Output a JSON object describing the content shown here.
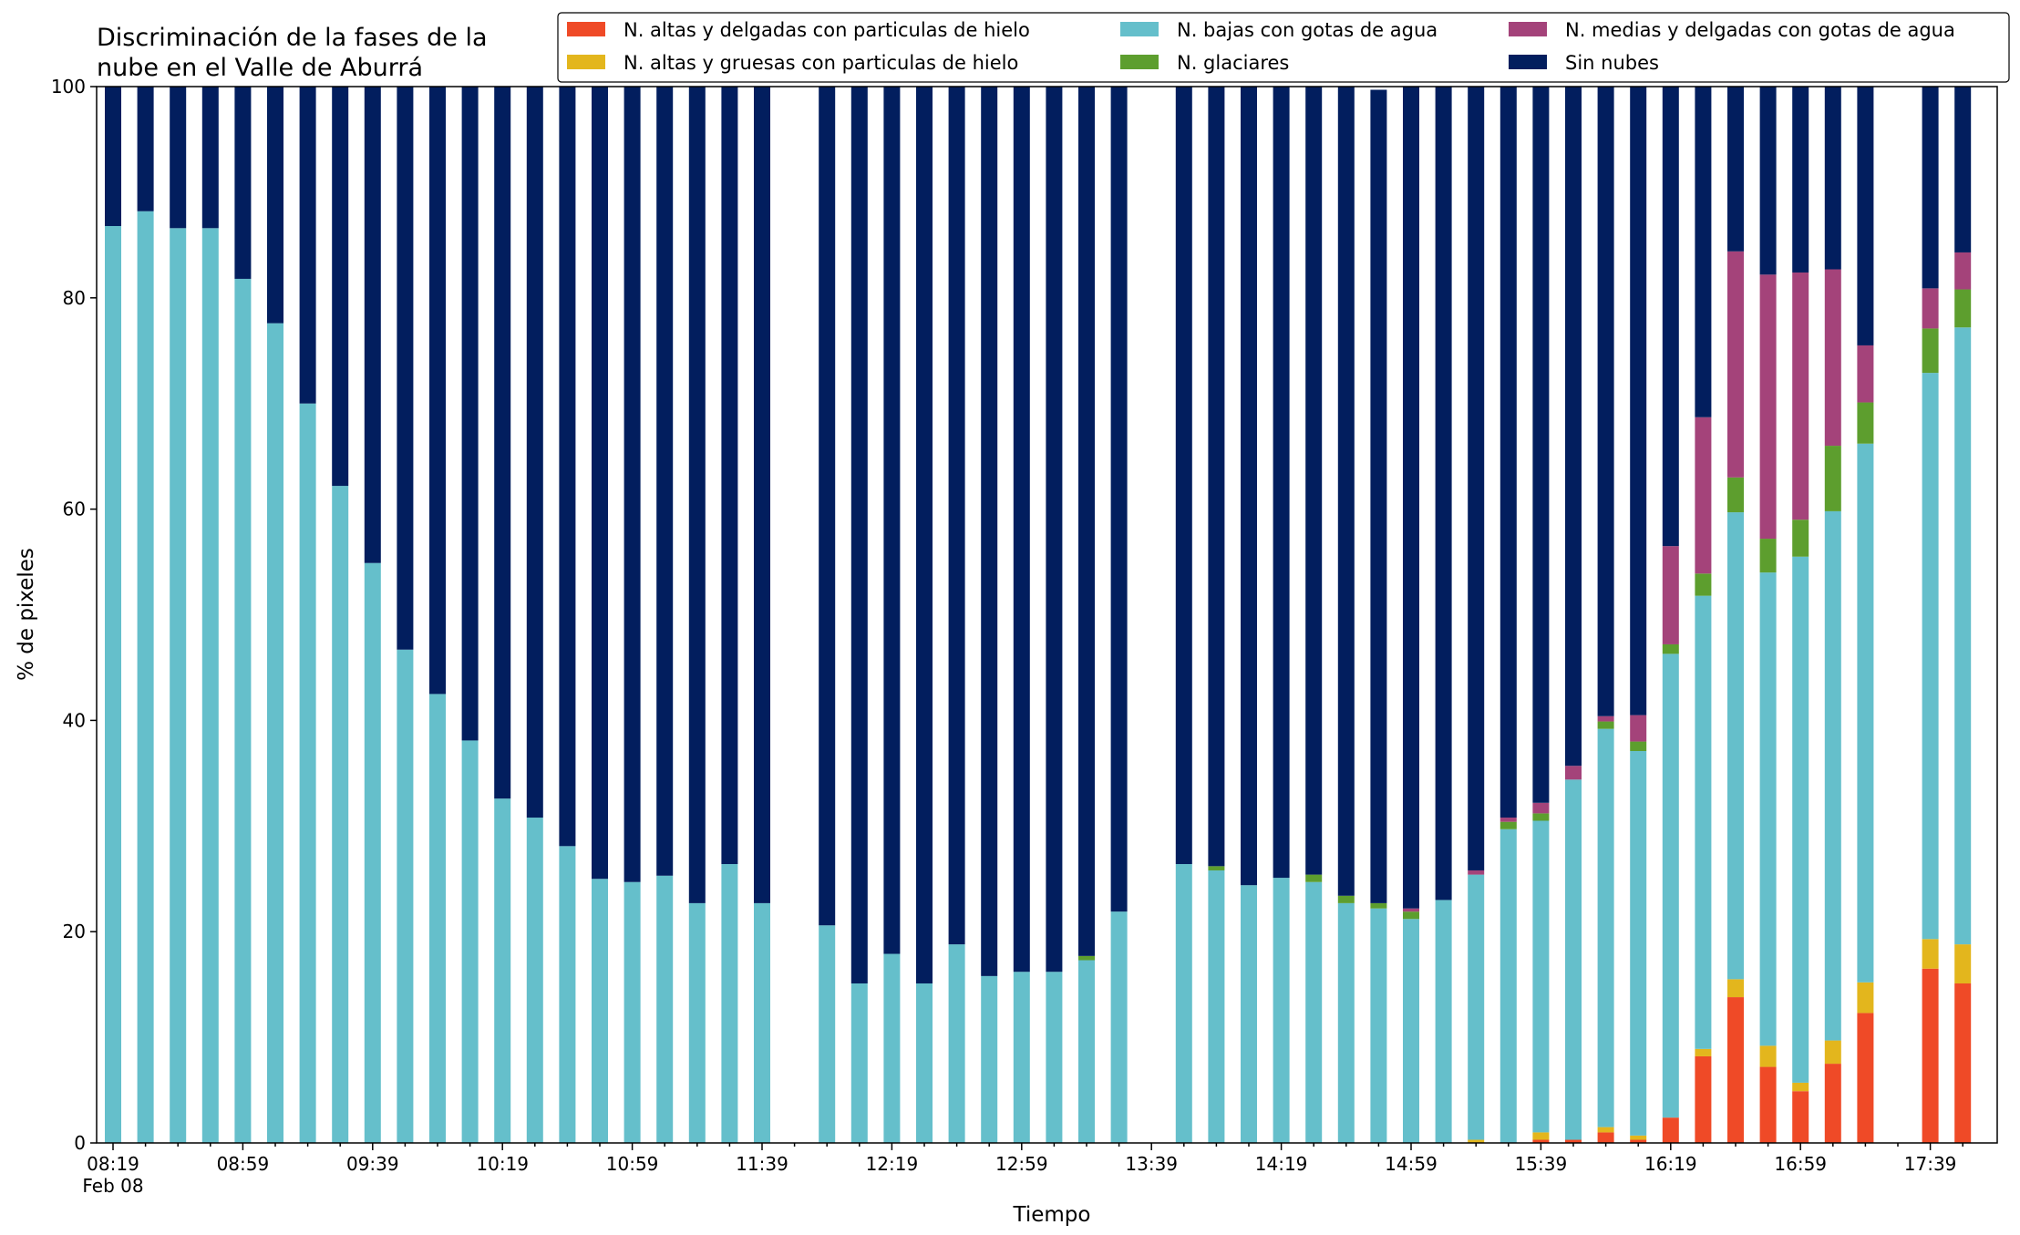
{
  "chart_data": {
    "type": "bar",
    "stacked": true,
    "title_lines": [
      "Discriminación de la fases de la",
      "nube en el Valle de Aburrá"
    ],
    "xlabel": "Tiempo",
    "ylabel": "% de pixeles",
    "ylim": [
      0,
      100
    ],
    "yticks": [
      0,
      20,
      40,
      60,
      80,
      100
    ],
    "x_tick_labels": [
      "08:19",
      "08:59",
      "09:39",
      "10:19",
      "10:59",
      "11:39",
      "12:19",
      "12:59",
      "13:39",
      "14:19",
      "14:59",
      "15:39",
      "16:19",
      "16:59",
      "17:39"
    ],
    "x_date_label": "Feb 08",
    "legend_position": "top-right",
    "legend_columns": 3,
    "grid": false,
    "x": [
      "08:19",
      "08:29",
      "08:39",
      "08:49",
      "08:59",
      "09:09",
      "09:19",
      "09:29",
      "09:39",
      "09:49",
      "09:59",
      "10:09",
      "10:19",
      "10:29",
      "10:39",
      "10:49",
      "10:59",
      "11:09",
      "11:19",
      "11:29",
      "11:39",
      "11:49",
      "11:59",
      "12:09",
      "12:19",
      "12:29",
      "12:39",
      "12:49",
      "12:59",
      "13:09",
      "13:19",
      "13:29",
      "13:39",
      "13:49",
      "13:59",
      "14:09",
      "14:19",
      "14:29",
      "14:39",
      "14:49",
      "14:59",
      "15:09",
      "15:19",
      "15:29",
      "15:39",
      "15:49",
      "15:59",
      "16:09",
      "16:19",
      "16:29",
      "16:39",
      "16:49",
      "16:59",
      "17:09",
      "17:19",
      "17:29",
      "17:39",
      "17:49"
    ],
    "series": [
      {
        "name": "N. altas y delgadas con particulas de hielo",
        "color": "#ef4a27",
        "values": [
          0,
          0,
          0,
          0,
          0,
          0,
          0,
          0,
          0,
          0,
          0,
          0,
          0,
          0,
          0,
          0,
          0,
          0,
          0,
          0,
          0,
          0,
          0,
          0,
          0,
          0,
          0,
          0,
          0,
          0,
          0,
          0,
          0,
          0,
          0,
          0,
          0,
          0,
          0,
          0,
          0,
          0,
          0,
          0,
          0.3,
          0.3,
          1.0,
          0.3,
          2.4,
          8.2,
          13.8,
          7.2,
          4.9,
          7.5,
          12.3,
          0,
          16.5,
          15.1
        ]
      },
      {
        "name": "N. altas y gruesas con particulas de hielo",
        "color": "#e3b61d",
        "values": [
          0,
          0,
          0,
          0,
          0,
          0,
          0,
          0,
          0,
          0,
          0,
          0,
          0,
          0,
          0,
          0,
          0,
          0,
          0,
          0,
          0,
          0,
          0,
          0,
          0,
          0,
          0,
          0,
          0,
          0,
          0,
          0,
          0,
          0,
          0,
          0,
          0,
          0,
          0,
          0,
          0,
          0,
          0.3,
          0,
          0.7,
          0,
          0.5,
          0.4,
          0,
          0.7,
          1.7,
          2.0,
          0.8,
          2.2,
          2.9,
          0,
          2.8,
          3.7
        ]
      },
      {
        "name": "N. bajas con gotas de agua",
        "color": "#65bfcb",
        "values": [
          86.8,
          88.2,
          86.6,
          86.6,
          81.8,
          77.6,
          70.0,
          62.2,
          54.9,
          46.7,
          42.5,
          38.1,
          32.6,
          30.8,
          28.1,
          25.0,
          24.7,
          25.3,
          22.7,
          26.4,
          22.7,
          0,
          20.6,
          15.1,
          17.9,
          15.1,
          18.8,
          15.8,
          16.2,
          16.2,
          17.3,
          21.9,
          0,
          26.4,
          25.8,
          24.4,
          25.1,
          24.7,
          22.7,
          22.2,
          21.2,
          23.0,
          25.1,
          29.7,
          29.5,
          34.1,
          37.7,
          36.4,
          43.9,
          42.9,
          44.2,
          44.8,
          49.8,
          50.1,
          51.0,
          0,
          53.6,
          58.4
        ]
      },
      {
        "name": "N. glaciares",
        "color": "#5d9e2e",
        "values": [
          0,
          0,
          0,
          0,
          0,
          0,
          0,
          0,
          0,
          0,
          0,
          0,
          0,
          0,
          0,
          0,
          0,
          0,
          0,
          0,
          0,
          0,
          0,
          0,
          0,
          0,
          0,
          0,
          0,
          0,
          0.4,
          0,
          0,
          0,
          0.4,
          0,
          0,
          0.7,
          0.7,
          0.5,
          0.7,
          0,
          0,
          0.7,
          0.7,
          0,
          0.7,
          0.9,
          0.9,
          2.1,
          3.3,
          3.2,
          3.5,
          6.2,
          3.9,
          0,
          4.2,
          3.6
        ]
      },
      {
        "name": "N. medias y delgadas con gotas de agua",
        "color": "#a4437a",
        "values": [
          0,
          0,
          0,
          0,
          0,
          0,
          0,
          0,
          0,
          0,
          0,
          0,
          0,
          0,
          0,
          0,
          0,
          0,
          0,
          0,
          0,
          0,
          0,
          0,
          0,
          0,
          0,
          0,
          0,
          0,
          0,
          0,
          0,
          0,
          0,
          0,
          0,
          0,
          0,
          0,
          0.3,
          0,
          0.4,
          0.4,
          1.0,
          1.3,
          0.5,
          2.5,
          9.3,
          14.8,
          21.4,
          25.0,
          23.4,
          16.7,
          5.4,
          0,
          3.8,
          3.5
        ]
      },
      {
        "name": "Sin nubes",
        "color": "#021e5e",
        "values": [
          13.2,
          11.8,
          13.4,
          13.4,
          18.2,
          22.4,
          30.0,
          37.8,
          45.1,
          53.3,
          57.5,
          61.9,
          67.4,
          69.2,
          71.9,
          75.0,
          75.3,
          74.7,
          77.3,
          73.6,
          77.3,
          0,
          79.4,
          84.9,
          82.1,
          84.9,
          81.2,
          84.2,
          83.8,
          83.8,
          82.3,
          78.1,
          0,
          73.6,
          73.8,
          75.6,
          74.9,
          74.6,
          76.6,
          77.0,
          77.8,
          77.0,
          74.2,
          69.2,
          67.8,
          64.3,
          59.6,
          59.5,
          43.5,
          31.3,
          15.6,
          17.8,
          17.6,
          17.3,
          24.5,
          0,
          19.1,
          15.7
        ]
      }
    ]
  }
}
